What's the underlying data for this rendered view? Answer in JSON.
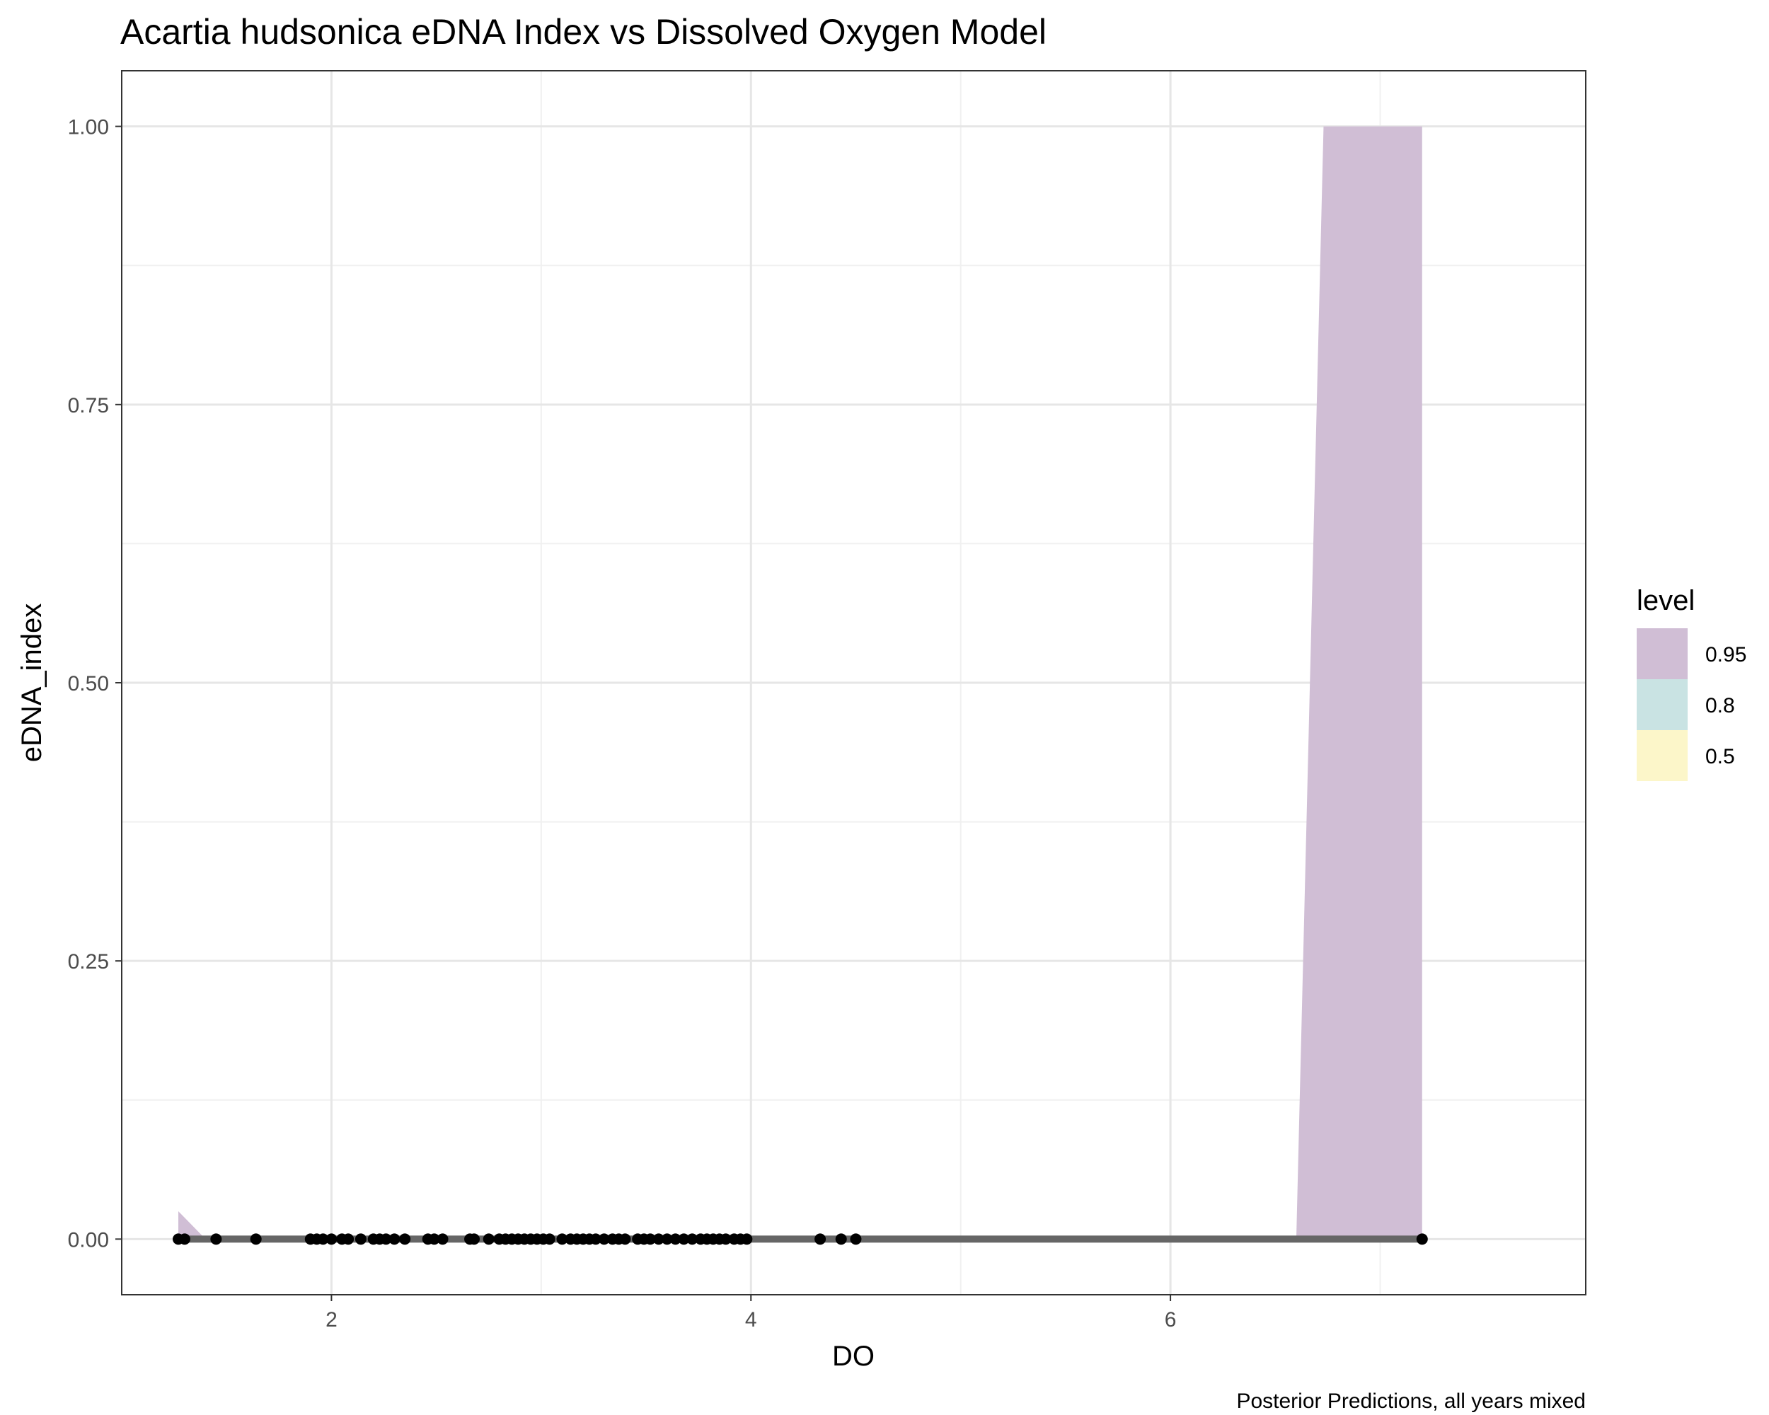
{
  "chart_data": {
    "type": "line",
    "title": "Acartia hudsonica eDNA Index vs Dissolved Oxygen Model",
    "xlabel": "DO",
    "ylabel": "eDNA_index",
    "caption": "Posterior Predictions, all years mixed",
    "xlim": [
      1.0,
      7.98
    ],
    "ylim": [
      -0.05,
      1.05
    ],
    "x_ticks": [
      2,
      4,
      6
    ],
    "x_tick_labels": [
      "2",
      "4",
      "6"
    ],
    "y_ticks": [
      0,
      0.25,
      0.5,
      0.75,
      1.0
    ],
    "y_tick_labels": [
      "0.00",
      "0.25",
      "0.50",
      "0.75",
      "1.00"
    ],
    "grid": true,
    "legend": {
      "title": "level",
      "placement": "right",
      "entries": [
        {
          "label": "0.95",
          "color": "#d0bed5"
        },
        {
          "label": "0.8",
          "color": "#c9e3e3"
        },
        {
          "label": "0.5",
          "color": "#fcf6c9"
        }
      ]
    },
    "ribbons": [
      {
        "level": "0.95",
        "color": "#d0bed5",
        "x": [
          1.27,
          1.27,
          1.4,
          6.6,
          6.6,
          6.73,
          7.2,
          7.2
        ],
        "upper": [
          0.025,
          0.025,
          0.0,
          0.0,
          0.0,
          1.0,
          1.0,
          0.0
        ],
        "lower": [
          0.0,
          0.0,
          0.0,
          0.0,
          0.0,
          0.0,
          0.0,
          0.0
        ]
      }
    ],
    "median_line": {
      "color": "#666666",
      "x": [
        1.27,
        7.2
      ],
      "y": [
        0.0,
        0.0
      ]
    },
    "points": {
      "color": "#000000",
      "x": [
        1.27,
        1.3,
        1.45,
        1.64,
        1.9,
        1.93,
        1.96,
        2.0,
        2.05,
        2.08,
        2.14,
        2.2,
        2.23,
        2.26,
        2.3,
        2.35,
        2.46,
        2.49,
        2.53,
        2.66,
        2.68,
        2.75,
        2.8,
        2.83,
        2.86,
        2.89,
        2.92,
        2.95,
        2.98,
        3.01,
        3.04,
        3.1,
        3.14,
        3.17,
        3.2,
        3.23,
        3.26,
        3.3,
        3.34,
        3.37,
        3.4,
        3.46,
        3.49,
        3.52,
        3.56,
        3.6,
        3.64,
        3.68,
        3.72,
        3.76,
        3.79,
        3.82,
        3.85,
        3.88,
        3.92,
        3.95,
        3.98,
        4.33,
        4.43,
        4.5,
        7.2
      ],
      "y": [
        0,
        0,
        0,
        0,
        0,
        0,
        0,
        0,
        0,
        0,
        0,
        0,
        0,
        0,
        0,
        0,
        0,
        0,
        0,
        0,
        0,
        0,
        0,
        0,
        0,
        0,
        0,
        0,
        0,
        0,
        0,
        0,
        0,
        0,
        0,
        0,
        0,
        0,
        0,
        0,
        0,
        0,
        0,
        0,
        0,
        0,
        0,
        0,
        0,
        0,
        0,
        0,
        0,
        0,
        0,
        0,
        0,
        0,
        0,
        0,
        0
      ]
    }
  }
}
